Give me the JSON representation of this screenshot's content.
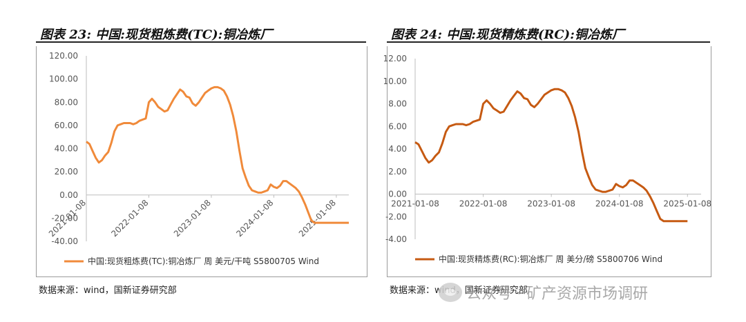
{
  "chart_data": [
    {
      "type": "line",
      "figure_title": "图表 23:  中国:现货粗炼费(TC):铜冶炼厂",
      "legend": "中国:现货粗炼费(TC):铜冶炼厂 周 美元/干吨 S5800705 Wind",
      "color": "#F08A3A",
      "ylim": [
        -40,
        120
      ],
      "yticks": [
        "120.00",
        "100.00",
        "80.00",
        "60.00",
        "40.00",
        "20.00",
        "0.00",
        "-20.00",
        "-40.00"
      ],
      "ytick_values": [
        120,
        100,
        80,
        60,
        40,
        20,
        0,
        -20,
        -40
      ],
      "xticks": [
        "2021-01-08",
        "2022-01-08",
        "2023-01-08",
        "2024-01-08",
        "2025-01-08"
      ],
      "xtick_values": [
        2021.0,
        2022.0,
        2023.0,
        2024.0,
        2025.0
      ],
      "x": [
        2021.0,
        2021.05,
        2021.1,
        2021.15,
        2021.2,
        2021.25,
        2021.3,
        2021.35,
        2021.4,
        2021.45,
        2021.5,
        2021.55,
        2021.6,
        2021.65,
        2021.7,
        2021.75,
        2021.8,
        2021.85,
        2021.9,
        2021.95,
        2022.0,
        2022.05,
        2022.1,
        2022.15,
        2022.2,
        2022.25,
        2022.3,
        2022.35,
        2022.4,
        2022.45,
        2022.5,
        2022.55,
        2022.6,
        2022.65,
        2022.7,
        2022.75,
        2022.8,
        2022.85,
        2022.9,
        2022.95,
        2023.0,
        2023.05,
        2023.1,
        2023.15,
        2023.2,
        2023.25,
        2023.3,
        2023.35,
        2023.4,
        2023.45,
        2023.5,
        2023.55,
        2023.6,
        2023.65,
        2023.7,
        2023.75,
        2023.8,
        2023.85,
        2023.9,
        2023.95,
        2024.0,
        2024.05,
        2024.1,
        2024.15,
        2024.2,
        2024.25,
        2024.3,
        2024.35,
        2024.4,
        2024.45,
        2024.5,
        2024.55,
        2024.6,
        2024.65,
        2024.7,
        2024.75,
        2024.8,
        2024.85,
        2024.9,
        2024.95,
        2025.0,
        2025.05,
        2025.1,
        2025.15,
        2025.2
      ],
      "values": [
        46,
        44,
        38,
        32,
        28,
        30,
        34,
        37,
        45,
        55,
        60,
        61,
        62,
        62,
        62,
        61,
        62,
        64,
        65,
        66,
        80,
        83,
        80,
        76,
        74,
        72,
        73,
        78,
        83,
        87,
        91,
        89,
        85,
        84,
        79,
        77,
        80,
        84,
        88,
        90,
        92,
        93,
        93,
        92,
        90,
        85,
        78,
        68,
        55,
        38,
        23,
        15,
        8,
        4,
        3,
        2,
        2,
        3,
        4,
        9,
        7,
        6,
        8,
        12,
        12,
        10,
        8,
        6,
        3,
        -2,
        -8,
        -15,
        -22,
        -24,
        -24,
        -24,
        -24,
        -24,
        -24,
        -24,
        -24,
        -24,
        -24,
        -24,
        -24
      ]
    },
    {
      "type": "line",
      "figure_title": "图表 24:  中国:现货精炼费(RC):铜冶炼厂",
      "legend": "中国:现货精炼费(RC):铜冶炼厂 周 美分/磅 S5800706 Wind",
      "color": "#C65A12",
      "ylim": [
        -4,
        12
      ],
      "yticks": [
        "12.00",
        "10.00",
        "8.00",
        "6.00",
        "4.00",
        "2.00",
        "0.00",
        "-2.00",
        "-4.00"
      ],
      "ytick_values": [
        12,
        10,
        8,
        6,
        4,
        2,
        0,
        -2,
        -4
      ],
      "xticks": [
        "2021-01-08",
        "2022-01-08",
        "2023-01-08",
        "2024-01-08",
        "2025-01-08"
      ],
      "xtick_values": [
        2021.0,
        2022.0,
        2023.0,
        2024.0,
        2025.0
      ],
      "x": [
        2021.0,
        2021.05,
        2021.1,
        2021.15,
        2021.2,
        2021.25,
        2021.3,
        2021.35,
        2021.4,
        2021.45,
        2021.5,
        2021.55,
        2021.6,
        2021.65,
        2021.7,
        2021.75,
        2021.8,
        2021.85,
        2021.9,
        2021.95,
        2022.0,
        2022.05,
        2022.1,
        2022.15,
        2022.2,
        2022.25,
        2022.3,
        2022.35,
        2022.4,
        2022.45,
        2022.5,
        2022.55,
        2022.6,
        2022.65,
        2022.7,
        2022.75,
        2022.8,
        2022.85,
        2022.9,
        2022.95,
        2023.0,
        2023.05,
        2023.1,
        2023.15,
        2023.2,
        2023.25,
        2023.3,
        2023.35,
        2023.4,
        2023.45,
        2023.5,
        2023.55,
        2023.6,
        2023.65,
        2023.7,
        2023.75,
        2023.8,
        2023.85,
        2023.9,
        2023.95,
        2024.0,
        2024.05,
        2024.1,
        2024.15,
        2024.2,
        2024.25,
        2024.3,
        2024.35,
        2024.4,
        2024.45,
        2024.5,
        2024.55,
        2024.6,
        2024.65,
        2024.7,
        2024.75,
        2024.8,
        2024.85,
        2024.9,
        2024.95,
        2025.0
      ],
      "values": [
        4.6,
        4.4,
        3.8,
        3.2,
        2.8,
        3.0,
        3.4,
        3.7,
        4.5,
        5.5,
        6.0,
        6.1,
        6.2,
        6.2,
        6.2,
        6.1,
        6.2,
        6.4,
        6.5,
        6.6,
        8.0,
        8.3,
        8.0,
        7.6,
        7.4,
        7.2,
        7.3,
        7.8,
        8.3,
        8.7,
        9.1,
        8.9,
        8.5,
        8.4,
        7.9,
        7.7,
        8.0,
        8.4,
        8.8,
        9.0,
        9.2,
        9.3,
        9.3,
        9.2,
        9.0,
        8.5,
        7.8,
        6.8,
        5.5,
        3.8,
        2.3,
        1.5,
        0.8,
        0.4,
        0.3,
        0.2,
        0.2,
        0.3,
        0.4,
        0.9,
        0.7,
        0.6,
        0.8,
        1.2,
        1.2,
        1.0,
        0.8,
        0.6,
        0.3,
        -0.2,
        -0.8,
        -1.5,
        -2.2,
        -2.4,
        -2.4,
        -2.4,
        -2.4,
        -2.4,
        -2.4,
        -2.4,
        -2.4
      ]
    }
  ],
  "sources": {
    "left": "数据来源：wind，国新证券研究部",
    "right": "数据来源：wind，国新证券研究部"
  },
  "watermark": "公众号 · 矿产资源市场调研"
}
